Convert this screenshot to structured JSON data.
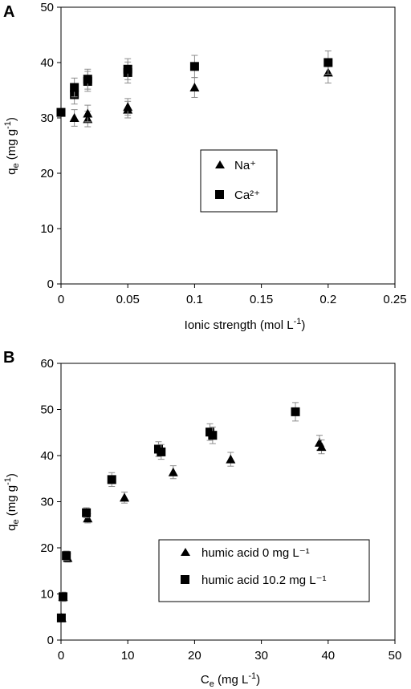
{
  "chart_data": [
    {
      "panel": "A",
      "type": "scatter",
      "xlabel": "Ionic strength (mol L",
      "xlabel_sup": "-1",
      "xlabel_close": ")",
      "ylabel_q": "q",
      "ylabel_sub": "e",
      "ylabel_rest": " (mg g",
      "ylabel_sup": "-1",
      "ylabel_close": ")",
      "xlim": [
        0,
        0.25
      ],
      "ylim": [
        0,
        50
      ],
      "x_ticks": [
        "0",
        "0.05",
        "0.1",
        "0.15",
        "0.2",
        "0.25"
      ],
      "y_ticks": [
        "0",
        "10",
        "20",
        "30",
        "40",
        "50"
      ],
      "legend_placement": "center",
      "series": [
        {
          "name": "Na⁺",
          "marker": "triangle",
          "points": [
            {
              "x": 0.01,
              "y": 30.0,
              "err": 1.5
            },
            {
              "x": 0.02,
              "y": 29.8,
              "err": 1.4
            },
            {
              "x": 0.02,
              "y": 30.8,
              "err": 1.5
            },
            {
              "x": 0.05,
              "y": 31.5,
              "err": 1.5
            },
            {
              "x": 0.05,
              "y": 32.0,
              "err": 1.5
            },
            {
              "x": 0.1,
              "y": 35.5,
              "err": 1.8
            },
            {
              "x": 0.2,
              "y": 38.2,
              "err": 1.9
            }
          ]
        },
        {
          "name": "Ca²⁺",
          "marker": "square",
          "points": [
            {
              "x": 0,
              "y": 31.0,
              "err": 0.5
            },
            {
              "x": 0.01,
              "y": 34.2,
              "err": 1.7
            },
            {
              "x": 0.01,
              "y": 35.5,
              "err": 1.7
            },
            {
              "x": 0.02,
              "y": 36.6,
              "err": 1.8
            },
            {
              "x": 0.02,
              "y": 37.0,
              "err": 1.8
            },
            {
              "x": 0.05,
              "y": 38.2,
              "err": 1.9
            },
            {
              "x": 0.05,
              "y": 38.8,
              "err": 1.9
            },
            {
              "x": 0.1,
              "y": 39.3,
              "err": 2.0
            },
            {
              "x": 0.2,
              "y": 40.0,
              "err": 2.1
            }
          ]
        }
      ]
    },
    {
      "panel": "B",
      "type": "scatter",
      "xlabel": "C",
      "xlabel_sub": "e",
      "xlabel_rest": " (mg L",
      "xlabel_sup": "-1",
      "xlabel_close": ")",
      "ylabel_q": "q",
      "ylabel_sub": "e",
      "ylabel_rest": " (mg g",
      "ylabel_sup": "-1",
      "ylabel_close": ")",
      "xlim": [
        0,
        50
      ],
      "ylim": [
        0,
        60
      ],
      "x_ticks": [
        "0",
        "10",
        "20",
        "30",
        "40",
        "50"
      ],
      "y_ticks": [
        "0",
        "10",
        "20",
        "30",
        "40",
        "50",
        "60"
      ],
      "legend_placement": "bottom-right",
      "series": [
        {
          "name": "humic acid 0 mg L⁻¹",
          "marker": "triangle",
          "points": [
            {
              "x": 0.1,
              "y": 4.8,
              "err": 0.6
            },
            {
              "x": 0.3,
              "y": 9.4,
              "err": 0.8
            },
            {
              "x": 1.0,
              "y": 17.8,
              "err": 0.9
            },
            {
              "x": 4.0,
              "y": 26.4,
              "err": 1.0
            },
            {
              "x": 9.5,
              "y": 30.9,
              "err": 1.2
            },
            {
              "x": 16.8,
              "y": 36.4,
              "err": 1.4
            },
            {
              "x": 25.4,
              "y": 39.2,
              "err": 1.5
            },
            {
              "x": 38.7,
              "y": 42.8,
              "err": 1.6
            },
            {
              "x": 39.0,
              "y": 41.9,
              "err": 1.5
            }
          ]
        },
        {
          "name": "humic acid 10.2 mg L⁻¹",
          "marker": "square",
          "points": [
            {
              "x": 0.05,
              "y": 4.8,
              "err": 0.6
            },
            {
              "x": 0.3,
              "y": 9.4,
              "err": 1.0
            },
            {
              "x": 0.8,
              "y": 18.3,
              "err": 1.0
            },
            {
              "x": 3.8,
              "y": 27.6,
              "err": 1.1
            },
            {
              "x": 7.6,
              "y": 34.8,
              "err": 1.5
            },
            {
              "x": 14.6,
              "y": 41.4,
              "err": 1.6
            },
            {
              "x": 15.0,
              "y": 40.8,
              "err": 1.6
            },
            {
              "x": 22.3,
              "y": 45.1,
              "err": 1.8
            },
            {
              "x": 22.7,
              "y": 44.4,
              "err": 1.8
            },
            {
              "x": 35.1,
              "y": 49.5,
              "err": 2.0
            }
          ]
        }
      ]
    }
  ]
}
